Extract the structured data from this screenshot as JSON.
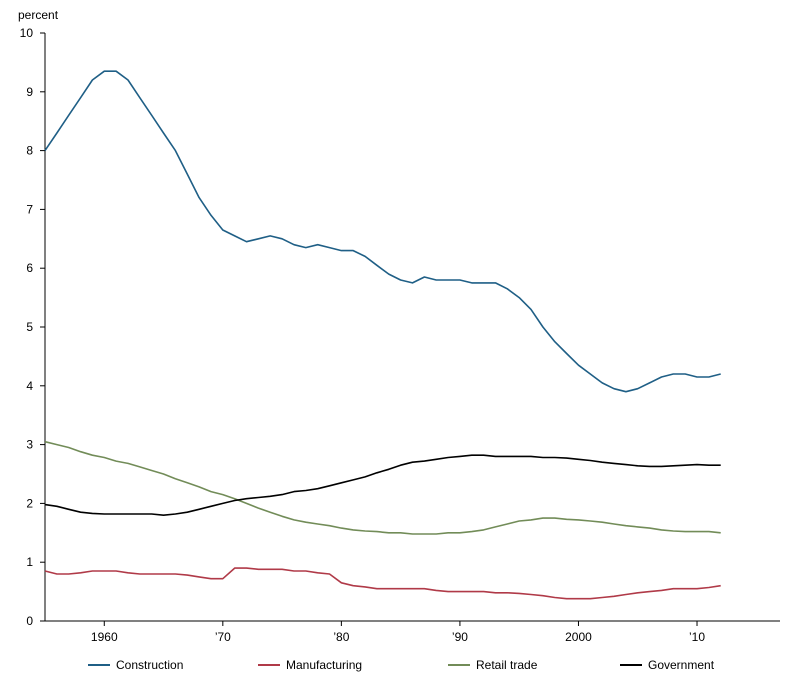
{
  "chart_data": {
    "type": "line",
    "title": "",
    "ylabel": "percent",
    "xlabel": "",
    "xlim": [
      1955,
      2017
    ],
    "ylim": [
      0,
      10
    ],
    "y_ticks": [
      "0",
      "1",
      "2",
      "3",
      "4",
      "5",
      "6",
      "7",
      "8",
      "9",
      "10"
    ],
    "x_ticks": [
      {
        "value": 1960,
        "label": "1960"
      },
      {
        "value": 1970,
        "label": "’70"
      },
      {
        "value": 1980,
        "label": "’80"
      },
      {
        "value": 1990,
        "label": "’90"
      },
      {
        "value": 2000,
        "label": "2000"
      },
      {
        "value": 2010,
        "label": "’10"
      }
    ],
    "grid": false,
    "legend_position": "bottom",
    "series": [
      {
        "name": "Construction",
        "color": "#1f5f86",
        "points": [
          [
            1955,
            8.0
          ],
          [
            1956,
            8.3
          ],
          [
            1957,
            8.6
          ],
          [
            1958,
            8.9
          ],
          [
            1959,
            9.2
          ],
          [
            1960,
            9.35
          ],
          [
            1961,
            9.35
          ],
          [
            1962,
            9.2
          ],
          [
            1963,
            8.9
          ],
          [
            1964,
            8.6
          ],
          [
            1965,
            8.3
          ],
          [
            1966,
            8.0
          ],
          [
            1967,
            7.6
          ],
          [
            1968,
            7.2
          ],
          [
            1969,
            6.9
          ],
          [
            1970,
            6.65
          ],
          [
            1971,
            6.55
          ],
          [
            1972,
            6.45
          ],
          [
            1973,
            6.5
          ],
          [
            1974,
            6.55
          ],
          [
            1975,
            6.5
          ],
          [
            1976,
            6.4
          ],
          [
            1977,
            6.35
          ],
          [
            1978,
            6.4
          ],
          [
            1979,
            6.35
          ],
          [
            1980,
            6.3
          ],
          [
            1981,
            6.3
          ],
          [
            1982,
            6.2
          ],
          [
            1983,
            6.05
          ],
          [
            1984,
            5.9
          ],
          [
            1985,
            5.8
          ],
          [
            1986,
            5.75
          ],
          [
            1987,
            5.85
          ],
          [
            1988,
            5.8
          ],
          [
            1989,
            5.8
          ],
          [
            1990,
            5.8
          ],
          [
            1991,
            5.75
          ],
          [
            1992,
            5.75
          ],
          [
            1993,
            5.75
          ],
          [
            1994,
            5.65
          ],
          [
            1995,
            5.5
          ],
          [
            1996,
            5.3
          ],
          [
            1997,
            5.0
          ],
          [
            1998,
            4.75
          ],
          [
            1999,
            4.55
          ],
          [
            2000,
            4.35
          ],
          [
            2001,
            4.2
          ],
          [
            2002,
            4.05
          ],
          [
            2003,
            3.95
          ],
          [
            2004,
            3.9
          ],
          [
            2005,
            3.95
          ],
          [
            2006,
            4.05
          ],
          [
            2007,
            4.15
          ],
          [
            2008,
            4.2
          ],
          [
            2009,
            4.2
          ],
          [
            2010,
            4.15
          ],
          [
            2011,
            4.15
          ],
          [
            2012,
            4.2
          ]
        ]
      },
      {
        "name": "Manufacturing",
        "color": "#b03a48",
        "points": [
          [
            1955,
            0.85
          ],
          [
            1956,
            0.8
          ],
          [
            1957,
            0.8
          ],
          [
            1958,
            0.82
          ],
          [
            1959,
            0.85
          ],
          [
            1960,
            0.85
          ],
          [
            1961,
            0.85
          ],
          [
            1962,
            0.82
          ],
          [
            1963,
            0.8
          ],
          [
            1964,
            0.8
          ],
          [
            1965,
            0.8
          ],
          [
            1966,
            0.8
          ],
          [
            1967,
            0.78
          ],
          [
            1968,
            0.75
          ],
          [
            1969,
            0.72
          ],
          [
            1970,
            0.72
          ],
          [
            1971,
            0.9
          ],
          [
            1972,
            0.9
          ],
          [
            1973,
            0.88
          ],
          [
            1974,
            0.88
          ],
          [
            1975,
            0.88
          ],
          [
            1976,
            0.85
          ],
          [
            1977,
            0.85
          ],
          [
            1978,
            0.82
          ],
          [
            1979,
            0.8
          ],
          [
            1980,
            0.65
          ],
          [
            1981,
            0.6
          ],
          [
            1982,
            0.58
          ],
          [
            1983,
            0.55
          ],
          [
            1984,
            0.55
          ],
          [
            1985,
            0.55
          ],
          [
            1986,
            0.55
          ],
          [
            1987,
            0.55
          ],
          [
            1988,
            0.52
          ],
          [
            1989,
            0.5
          ],
          [
            1990,
            0.5
          ],
          [
            1991,
            0.5
          ],
          [
            1992,
            0.5
          ],
          [
            1993,
            0.48
          ],
          [
            1994,
            0.48
          ],
          [
            1995,
            0.47
          ],
          [
            1996,
            0.45
          ],
          [
            1997,
            0.43
          ],
          [
            1998,
            0.4
          ],
          [
            1999,
            0.38
          ],
          [
            2000,
            0.38
          ],
          [
            2001,
            0.38
          ],
          [
            2002,
            0.4
          ],
          [
            2003,
            0.42
          ],
          [
            2004,
            0.45
          ],
          [
            2005,
            0.48
          ],
          [
            2006,
            0.5
          ],
          [
            2007,
            0.52
          ],
          [
            2008,
            0.55
          ],
          [
            2009,
            0.55
          ],
          [
            2010,
            0.55
          ],
          [
            2011,
            0.57
          ],
          [
            2012,
            0.6
          ]
        ]
      },
      {
        "name": "Retail trade",
        "color": "#728c58",
        "points": [
          [
            1955,
            3.05
          ],
          [
            1956,
            3.0
          ],
          [
            1957,
            2.95
          ],
          [
            1958,
            2.88
          ],
          [
            1959,
            2.82
          ],
          [
            1960,
            2.78
          ],
          [
            1961,
            2.72
          ],
          [
            1962,
            2.68
          ],
          [
            1963,
            2.62
          ],
          [
            1964,
            2.56
          ],
          [
            1965,
            2.5
          ],
          [
            1966,
            2.42
          ],
          [
            1967,
            2.35
          ],
          [
            1968,
            2.28
          ],
          [
            1969,
            2.2
          ],
          [
            1970,
            2.15
          ],
          [
            1971,
            2.08
          ],
          [
            1972,
            2.0
          ],
          [
            1973,
            1.92
          ],
          [
            1974,
            1.85
          ],
          [
            1975,
            1.78
          ],
          [
            1976,
            1.72
          ],
          [
            1977,
            1.68
          ],
          [
            1978,
            1.65
          ],
          [
            1979,
            1.62
          ],
          [
            1980,
            1.58
          ],
          [
            1981,
            1.55
          ],
          [
            1982,
            1.53
          ],
          [
            1983,
            1.52
          ],
          [
            1984,
            1.5
          ],
          [
            1985,
            1.5
          ],
          [
            1986,
            1.48
          ],
          [
            1987,
            1.48
          ],
          [
            1988,
            1.48
          ],
          [
            1989,
            1.5
          ],
          [
            1990,
            1.5
          ],
          [
            1991,
            1.52
          ],
          [
            1992,
            1.55
          ],
          [
            1993,
            1.6
          ],
          [
            1994,
            1.65
          ],
          [
            1995,
            1.7
          ],
          [
            1996,
            1.72
          ],
          [
            1997,
            1.75
          ],
          [
            1998,
            1.75
          ],
          [
            1999,
            1.73
          ],
          [
            2000,
            1.72
          ],
          [
            2001,
            1.7
          ],
          [
            2002,
            1.68
          ],
          [
            2003,
            1.65
          ],
          [
            2004,
            1.62
          ],
          [
            2005,
            1.6
          ],
          [
            2006,
            1.58
          ],
          [
            2007,
            1.55
          ],
          [
            2008,
            1.53
          ],
          [
            2009,
            1.52
          ],
          [
            2010,
            1.52
          ],
          [
            2011,
            1.52
          ],
          [
            2012,
            1.5
          ]
        ]
      },
      {
        "name": "Government",
        "color": "#000000",
        "points": [
          [
            1955,
            1.98
          ],
          [
            1956,
            1.95
          ],
          [
            1957,
            1.9
          ],
          [
            1958,
            1.85
          ],
          [
            1959,
            1.83
          ],
          [
            1960,
            1.82
          ],
          [
            1961,
            1.82
          ],
          [
            1962,
            1.82
          ],
          [
            1963,
            1.82
          ],
          [
            1964,
            1.82
          ],
          [
            1965,
            1.8
          ],
          [
            1966,
            1.82
          ],
          [
            1967,
            1.85
          ],
          [
            1968,
            1.9
          ],
          [
            1969,
            1.95
          ],
          [
            1970,
            2.0
          ],
          [
            1971,
            2.05
          ],
          [
            1972,
            2.08
          ],
          [
            1973,
            2.1
          ],
          [
            1974,
            2.12
          ],
          [
            1975,
            2.15
          ],
          [
            1976,
            2.2
          ],
          [
            1977,
            2.22
          ],
          [
            1978,
            2.25
          ],
          [
            1979,
            2.3
          ],
          [
            1980,
            2.35
          ],
          [
            1981,
            2.4
          ],
          [
            1982,
            2.45
          ],
          [
            1983,
            2.52
          ],
          [
            1984,
            2.58
          ],
          [
            1985,
            2.65
          ],
          [
            1986,
            2.7
          ],
          [
            1987,
            2.72
          ],
          [
            1988,
            2.75
          ],
          [
            1989,
            2.78
          ],
          [
            1990,
            2.8
          ],
          [
            1991,
            2.82
          ],
          [
            1992,
            2.82
          ],
          [
            1993,
            2.8
          ],
          [
            1994,
            2.8
          ],
          [
            1995,
            2.8
          ],
          [
            1996,
            2.8
          ],
          [
            1997,
            2.78
          ],
          [
            1998,
            2.78
          ],
          [
            1999,
            2.77
          ],
          [
            2000,
            2.75
          ],
          [
            2001,
            2.73
          ],
          [
            2002,
            2.7
          ],
          [
            2003,
            2.68
          ],
          [
            2004,
            2.66
          ],
          [
            2005,
            2.64
          ],
          [
            2006,
            2.63
          ],
          [
            2007,
            2.63
          ],
          [
            2008,
            2.64
          ],
          [
            2009,
            2.65
          ],
          [
            2010,
            2.66
          ],
          [
            2011,
            2.65
          ],
          [
            2012,
            2.65
          ]
        ]
      }
    ]
  }
}
